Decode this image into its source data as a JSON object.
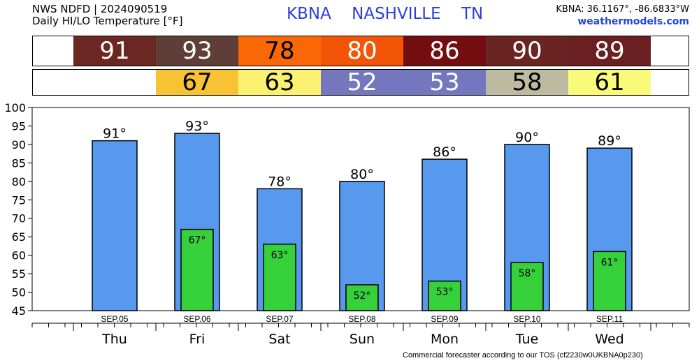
{
  "header": {
    "line1": "NWS NDFD | 2024090519",
    "line2": "Daily HI/LO Temperature [°F]",
    "station": [
      "KBNA",
      "NASHVILLE",
      "TN"
    ],
    "coords": "KBNA: 36.1167°, -86.6833°W",
    "site": "weathermodels.com"
  },
  "colors": {
    "hi_cells": [
      "#6b2722",
      "#5e3e37",
      "#fa6706",
      "#f25508",
      "#740d10",
      "#6a2422",
      "#6a2020"
    ],
    "hi_text": [
      "#ffffff",
      "#ffffff",
      "#000000",
      "#ffffff",
      "#ffffff",
      "#ffffff",
      "#ffffff"
    ],
    "lo_cells": [
      "",
      "#f8c235",
      "#fbf171",
      "#7476be",
      "#7476be",
      "#bcbba1",
      "#fafa7a"
    ],
    "lo_text": [
      "",
      "#000000",
      "#000000",
      "#ffffff",
      "#ffffff",
      "#000000",
      "#000000"
    ],
    "hi_bar": "#5799ef",
    "lo_bar": "#36d03a"
  },
  "chart_data": {
    "type": "bar",
    "categories": [
      "Thu",
      "Fri",
      "Sat",
      "Sun",
      "Mon",
      "Tue",
      "Wed"
    ],
    "dates": [
      "SEP.05",
      "SEP.06",
      "SEP.07",
      "SEP.08",
      "SEP.09",
      "SEP.10",
      "SEP.11"
    ],
    "series": [
      {
        "values": [
          91,
          93,
          78,
          80,
          86,
          90,
          89
        ]
      },
      {
        "values": [
          null,
          67,
          63,
          52,
          53,
          58,
          61
        ]
      }
    ],
    "ylim": [
      45,
      100
    ],
    "yticks": [
      45,
      50,
      55,
      60,
      65,
      70,
      75,
      80,
      85,
      90,
      95,
      100
    ],
    "label_suffix": "°"
  },
  "footer": "Commercial forecaster according to our TOS (cf2230w0UKBNA0p230)"
}
